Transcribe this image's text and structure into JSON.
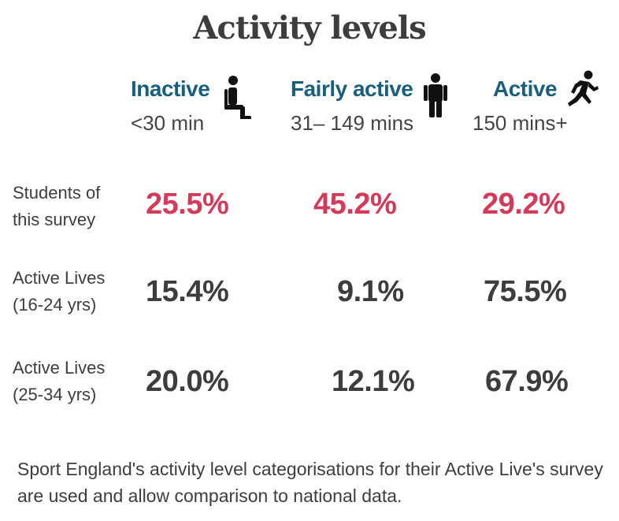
{
  "chart_data": {
    "type": "table",
    "title": "Activity levels",
    "columns": [
      {
        "name": "Inactive",
        "range": "<30 min",
        "icon": "sitting-person-icon"
      },
      {
        "name": "Fairly active",
        "range": "31– 149 mins",
        "icon": "standing-person-icon"
      },
      {
        "name": "Active",
        "range": "150 mins+",
        "icon": "running-person-icon"
      }
    ],
    "rows": [
      {
        "label_lines": [
          "Students of",
          "this survey"
        ],
        "values": [
          "25.5%",
          "45.2%",
          "29.2%"
        ],
        "highlight": true
      },
      {
        "label_lines": [
          "Active Lives",
          "(16-24 yrs)"
        ],
        "values": [
          "15.4%",
          "9.1%",
          "75.5%"
        ],
        "highlight": false
      },
      {
        "label_lines": [
          "Active Lives",
          "(25-34 yrs)"
        ],
        "values": [
          "20.0%",
          "12.1%",
          "67.9%"
        ],
        "highlight": false
      }
    ],
    "footnote": "Sport England's activity level categorisations for their Active Live's survey are used and allow comparison to national data."
  },
  "colors": {
    "column_header": "#1a5f7a",
    "highlight_value": "#d23c5a",
    "text": "#3d3d3d"
  }
}
